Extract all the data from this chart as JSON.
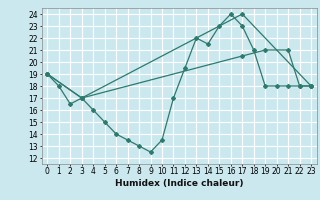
{
  "xlabel": "Humidex (Indice chaleur)",
  "ylabel": "",
  "bg_color": "#cce8ef",
  "line_color": "#2d7a6e",
  "grid_color": "#ffffff",
  "xlim": [
    -0.5,
    23.5
  ],
  "ylim": [
    11.5,
    24.5
  ],
  "yticks": [
    12,
    13,
    14,
    15,
    16,
    17,
    18,
    19,
    20,
    21,
    22,
    23,
    24
  ],
  "xticks": [
    0,
    1,
    2,
    3,
    4,
    5,
    6,
    7,
    8,
    9,
    10,
    11,
    12,
    13,
    14,
    15,
    16,
    17,
    18,
    19,
    20,
    21,
    22,
    23
  ],
  "lines": [
    {
      "x": [
        0,
        1,
        2,
        3,
        4,
        5,
        6,
        7,
        8,
        9,
        10,
        11,
        12,
        13,
        14,
        15,
        16,
        17,
        18,
        19,
        20,
        21,
        22,
        23
      ],
      "y": [
        19,
        18,
        16.5,
        17,
        16,
        15,
        14,
        13.5,
        13,
        12.5,
        13.5,
        17,
        19.5,
        22,
        21.5,
        23,
        24,
        23,
        21,
        18,
        18,
        18,
        18,
        18
      ]
    },
    {
      "x": [
        0,
        3,
        17,
        23
      ],
      "y": [
        19,
        17,
        24,
        18
      ]
    },
    {
      "x": [
        0,
        3,
        17,
        19,
        21,
        22,
        23
      ],
      "y": [
        19,
        17,
        20.5,
        21,
        21,
        18,
        18
      ]
    }
  ]
}
